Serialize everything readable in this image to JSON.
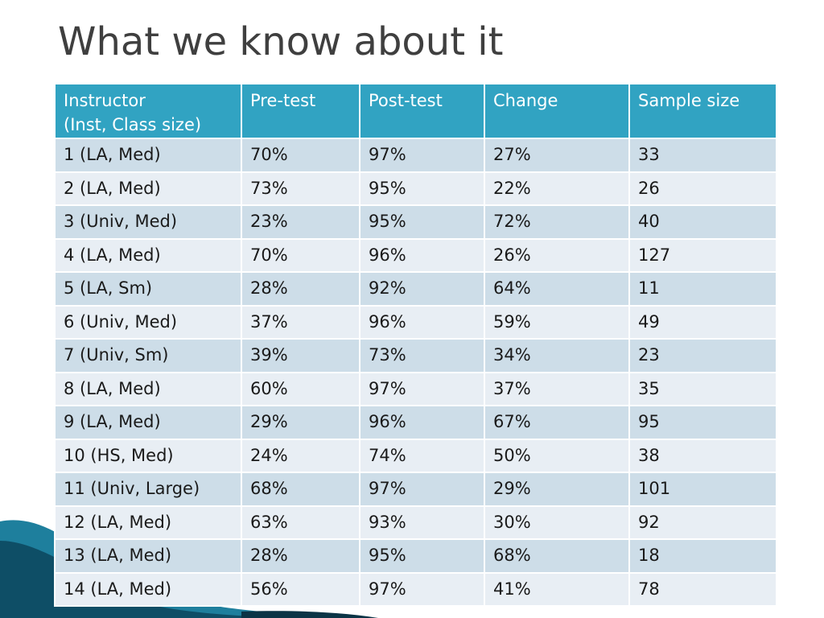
{
  "slide": {
    "title": "What we know about it"
  },
  "table": {
    "headers": [
      [
        "Instructor",
        "(Inst, Class size)"
      ],
      [
        "Pre-test"
      ],
      [
        "Post-test"
      ],
      [
        "Change"
      ],
      [
        "Sample size"
      ]
    ],
    "rows": [
      [
        "1 (LA, Med)",
        "70%",
        "97%",
        "27%",
        "33"
      ],
      [
        "2 (LA, Med)",
        "73%",
        "95%",
        "22%",
        "26"
      ],
      [
        "3 (Univ, Med)",
        "23%",
        "95%",
        "72%",
        "40"
      ],
      [
        "4 (LA, Med)",
        "70%",
        "96%",
        "26%",
        "127"
      ],
      [
        "5 (LA, Sm)",
        "28%",
        "92%",
        "64%",
        "11"
      ],
      [
        "6 (Univ, Med)",
        "37%",
        "96%",
        "59%",
        "49"
      ],
      [
        "7 (Univ, Sm)",
        "39%",
        "73%",
        "34%",
        "23"
      ],
      [
        "8 (LA, Med)",
        "60%",
        "97%",
        "37%",
        "35"
      ],
      [
        "9 (LA, Med)",
        "29%",
        "96%",
        "67%",
        "95"
      ],
      [
        "10 (HS, Med)",
        "24%",
        "74%",
        "50%",
        "38"
      ],
      [
        "11 (Univ, Large)",
        "68%",
        "97%",
        "29%",
        "101"
      ],
      [
        "12 (LA, Med)",
        "63%",
        "93%",
        "30%",
        "92"
      ],
      [
        "13 (LA, Med)",
        "28%",
        "95%",
        "68%",
        "18"
      ],
      [
        "14 (LA, Med)",
        "56%",
        "97%",
        "41%",
        "78"
      ]
    ]
  },
  "colors": {
    "header_bg": "#31a3c2",
    "row_odd": "#cddde8",
    "row_even": "#e8eef4",
    "title_text": "#3f3f3f",
    "accent_dark": "#0b3446",
    "accent_mid": "#1e7f9d"
  }
}
